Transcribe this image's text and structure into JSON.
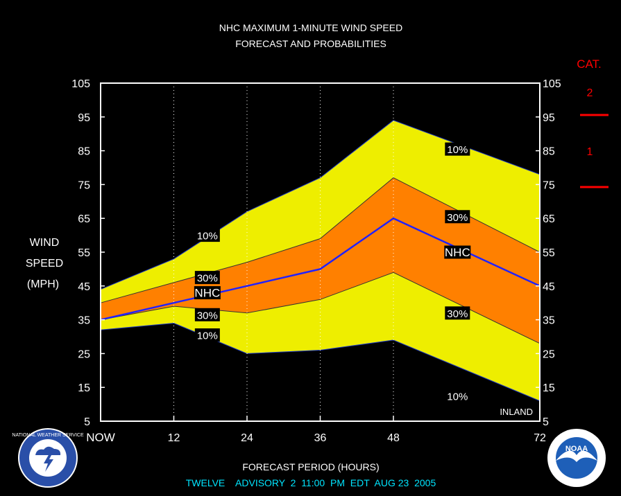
{
  "title_lines": [
    "NHC MAXIMUM 1-MINUTE WIND SPEED",
    "FORECAST AND PROBABILITIES"
  ],
  "ylabel_lines": [
    "WIND",
    "SPEED",
    "(MPH)"
  ],
  "xlabel": "FORECAST PERIOD (HOURS)",
  "advisory": "TWELVE    ADVISORY  2  11:00  PM  EDT  AUG 23  2005",
  "inland_label": "INLAND",
  "category_panel": {
    "title": "CAT.",
    "labels": [
      "2",
      "1"
    ]
  },
  "logos": {
    "left_text": "NATIONAL WEATHER SERVICE",
    "right_text": "NOAA"
  },
  "colors": {
    "background": "#000000",
    "band_outer": "#EEEE00",
    "band_inner": "#FF8000",
    "nhc_line": "#2222FF",
    "category": "#FF0000",
    "advisory": "#00E5FF",
    "text": "#FFFFFF"
  },
  "chart_data": {
    "type": "area",
    "x": [
      0,
      12,
      24,
      36,
      48,
      72
    ],
    "x_tick_labels": [
      "NOW",
      "12",
      "24",
      "36",
      "48",
      "72"
    ],
    "xlim": [
      0,
      72
    ],
    "ylim": [
      5,
      105
    ],
    "y_ticks": [
      5,
      15,
      25,
      35,
      45,
      55,
      65,
      75,
      85,
      95,
      105
    ],
    "grid": "vertical dotted at forecast hours",
    "series": [
      {
        "name": "10%",
        "role": "upper",
        "values": [
          44,
          53,
          67,
          77,
          94,
          78
        ]
      },
      {
        "name": "30%",
        "role": "upper",
        "values": [
          40,
          46,
          52,
          59,
          77,
          55
        ]
      },
      {
        "name": "NHC",
        "role": "forecast",
        "values": [
          35,
          40,
          45,
          50,
          65,
          45
        ]
      },
      {
        "name": "30%",
        "role": "lower",
        "values": [
          35,
          39,
          37,
          41,
          49,
          28
        ]
      },
      {
        "name": "10%",
        "role": "lower",
        "values": [
          32,
          34,
          25,
          26,
          29,
          11
        ]
      }
    ],
    "series_labels": [
      {
        "text": "10%",
        "x": 17.5,
        "y": 60
      },
      {
        "text": "30%",
        "x": 17.5,
        "y": 47.5
      },
      {
        "text": "NHC",
        "x": 17.5,
        "y": 43
      },
      {
        "text": "30%",
        "x": 17.5,
        "y": 36.5
      },
      {
        "text": "10%",
        "x": 17.5,
        "y": 30.5
      },
      {
        "text": "10%",
        "x": 58.5,
        "y": 85.5
      },
      {
        "text": "30%",
        "x": 58.5,
        "y": 65.5
      },
      {
        "text": "NHC",
        "x": 58.5,
        "y": 55
      },
      {
        "text": "30%",
        "x": 58.5,
        "y": 37
      },
      {
        "text": "10%",
        "x": 58.5,
        "y": 12.5
      }
    ],
    "category_thresholds": [
      {
        "label": "2",
        "wind": 96
      },
      {
        "label": "1",
        "wind": 74
      }
    ]
  }
}
